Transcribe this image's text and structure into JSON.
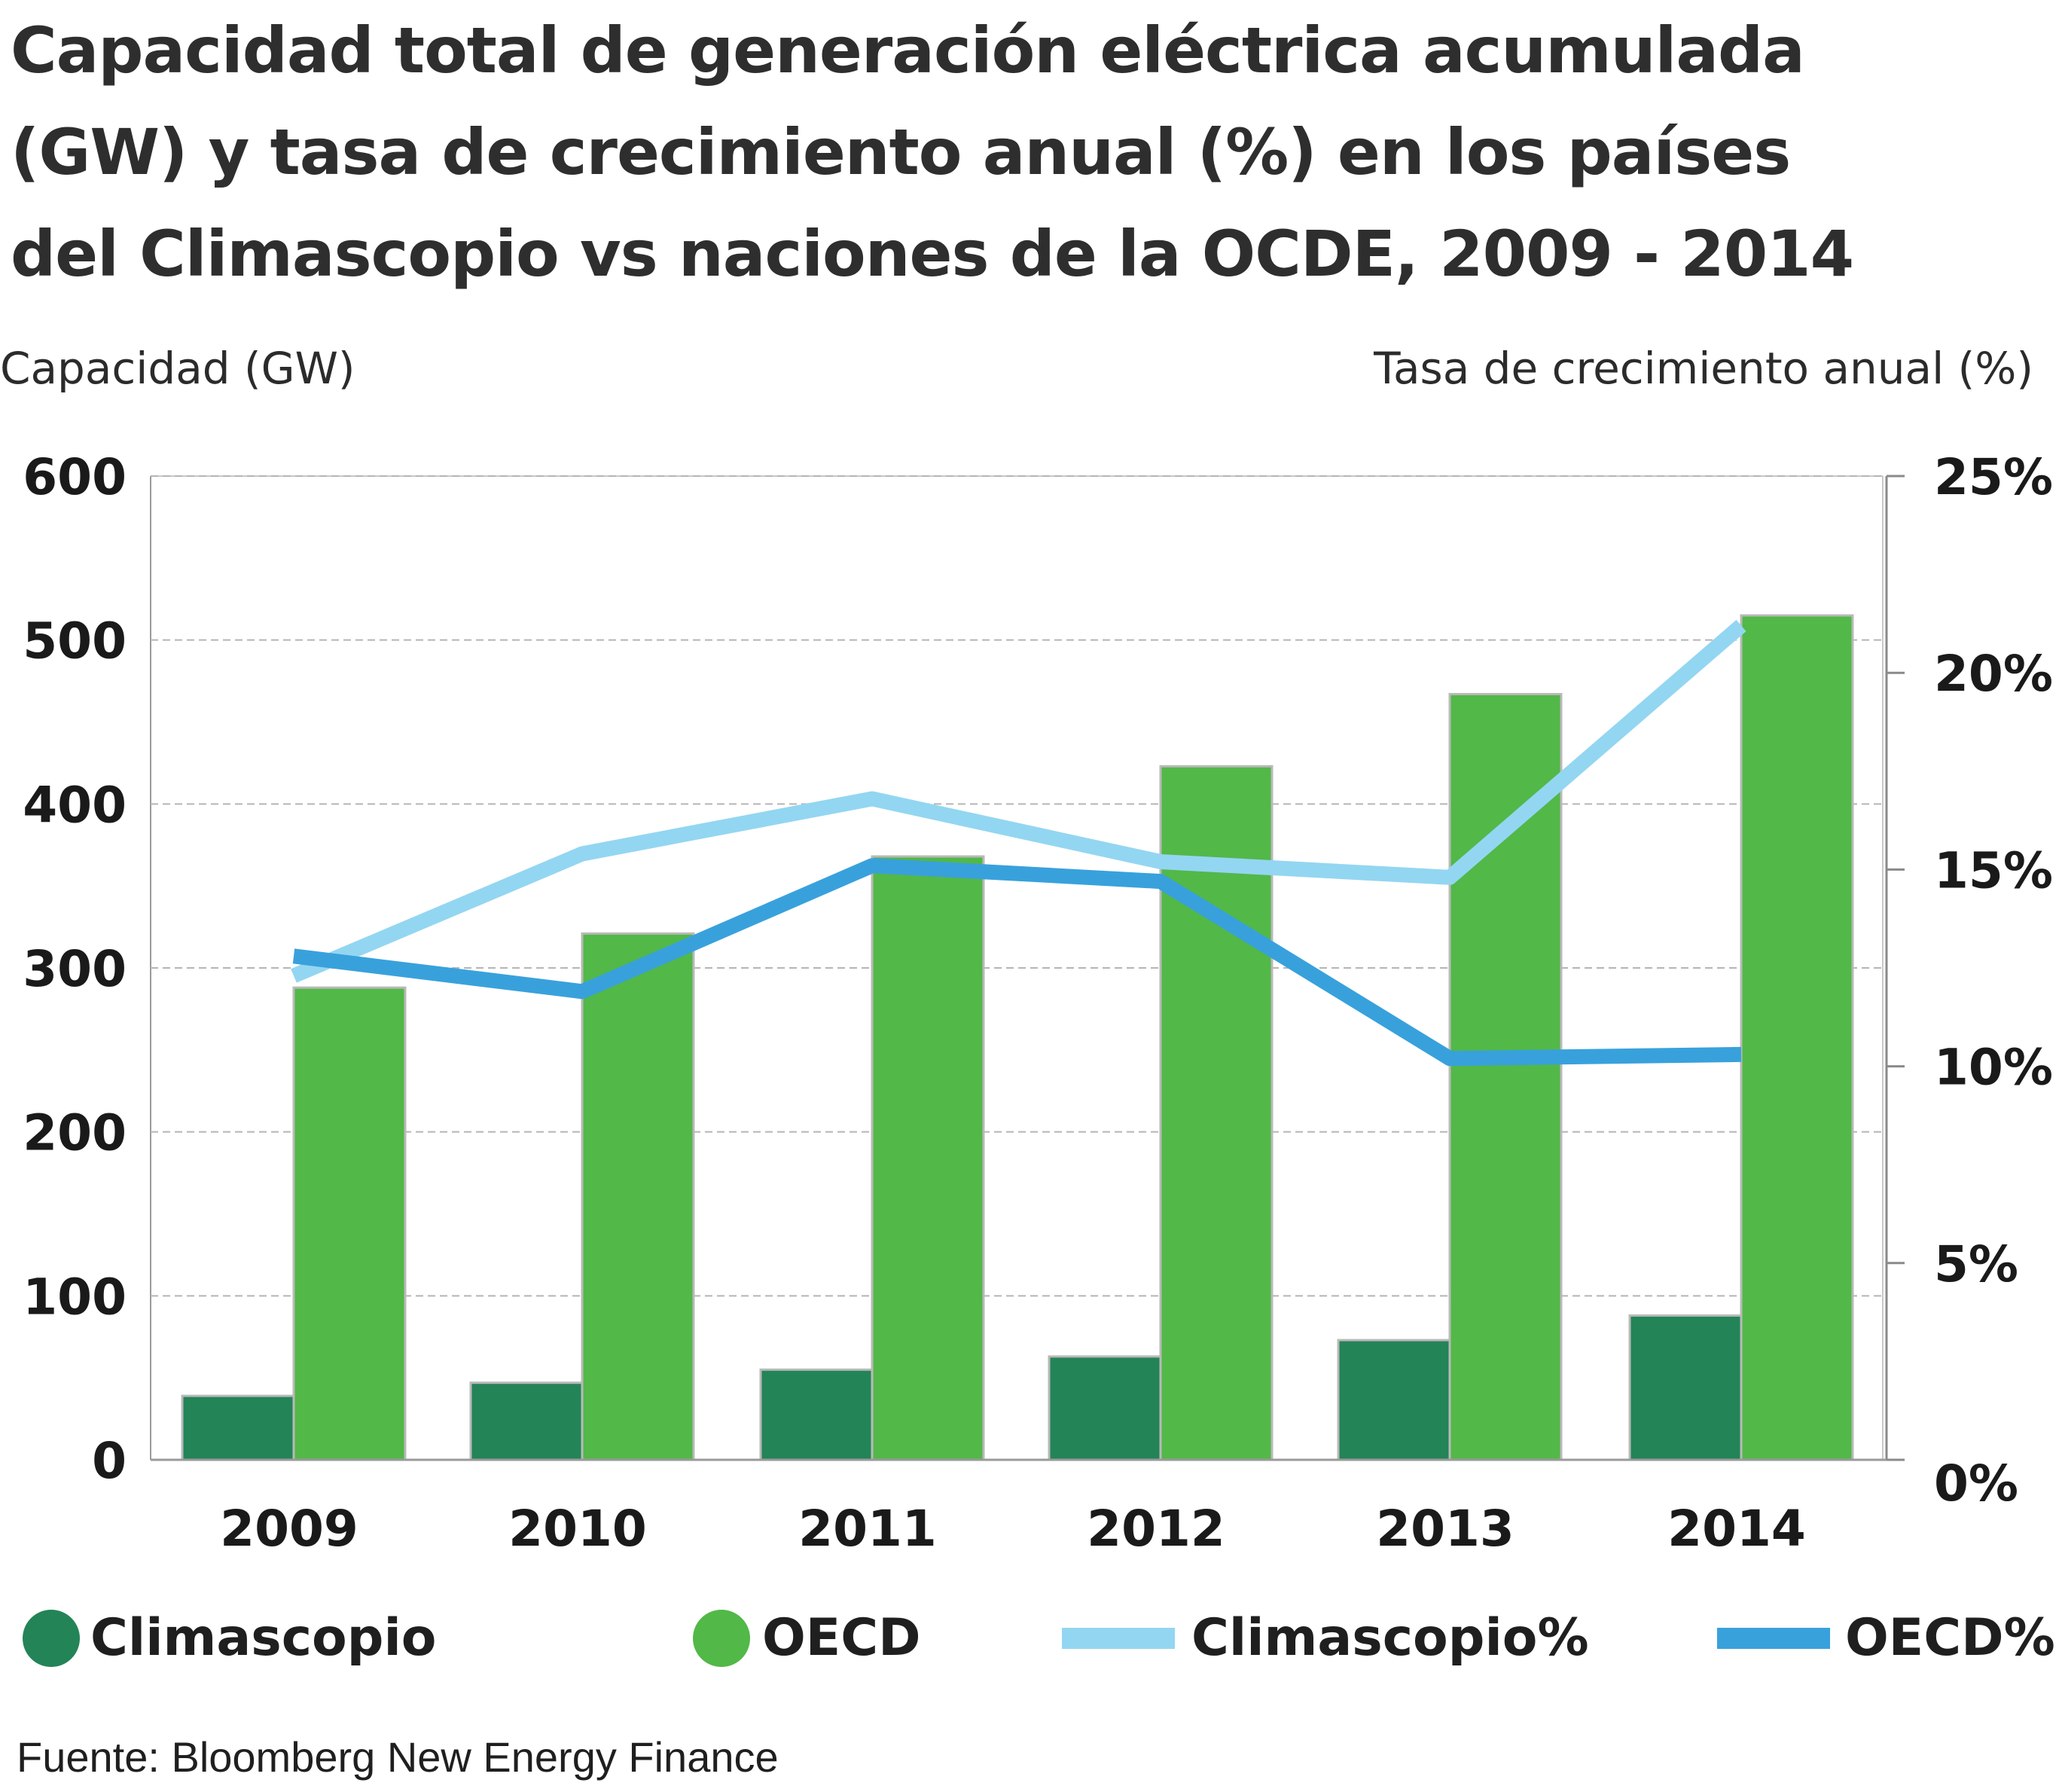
{
  "title_lines": [
    "Capacidad total de generación eléctrica acumulada",
    "(GW) y tasa de crecimiento anual (%) en los países",
    "del Climascopio vs naciones de la OCDE, 2009 - 2014"
  ],
  "left_axis_title": "Capacidad (GW)",
  "right_axis_title": "Tasa de crecimiento anual (%)",
  "source": "Fuente: Bloomberg New Energy Finance",
  "legend": [
    {
      "label": "Climascopio",
      "kind": "dot",
      "color": "#238457"
    },
    {
      "label": "OECD",
      "kind": "dot",
      "color": "#52b848"
    },
    {
      "label": "Climascopio%",
      "kind": "line",
      "color": "#93d6f1"
    },
    {
      "label": "OECD%",
      "kind": "line",
      "color": "#38a1dc"
    }
  ],
  "chart_data": {
    "type": "bar",
    "categories": [
      "2009",
      "2010",
      "2011",
      "2012",
      "2013",
      "2014"
    ],
    "series": [
      {
        "name": "Climascopio",
        "type": "bar",
        "axis": "left",
        "color": "#238457",
        "values": [
          39,
          47,
          55,
          63,
          73,
          88
        ]
      },
      {
        "name": "OECD",
        "type": "bar",
        "axis": "left",
        "color": "#52b848",
        "values": [
          288,
          321,
          368,
          423,
          467,
          515
        ]
      },
      {
        "name": "Climascopio%",
        "type": "line",
        "axis": "right",
        "color": "#93d6f1",
        "values": [
          12.3,
          15.4,
          16.8,
          15.2,
          14.8,
          21.2
        ]
      },
      {
        "name": "OECD%",
        "type": "line",
        "axis": "right",
        "color": "#38a1dc",
        "values": [
          12.8,
          11.9,
          15.1,
          14.7,
          10.2,
          10.3
        ]
      }
    ],
    "left_axis": {
      "label": "Capacidad (GW)",
      "ylim": [
        0,
        600
      ],
      "ticks": [
        "0",
        "100",
        "200",
        "300",
        "400",
        "500",
        "600"
      ]
    },
    "right_axis": {
      "label": "Tasa de crecimiento anual (%)",
      "ylim": [
        0,
        25
      ],
      "ticks": [
        "0%",
        "5%",
        "10%",
        "15%",
        "20%",
        "25%"
      ]
    },
    "grid": true,
    "legend_position": "bottom"
  }
}
